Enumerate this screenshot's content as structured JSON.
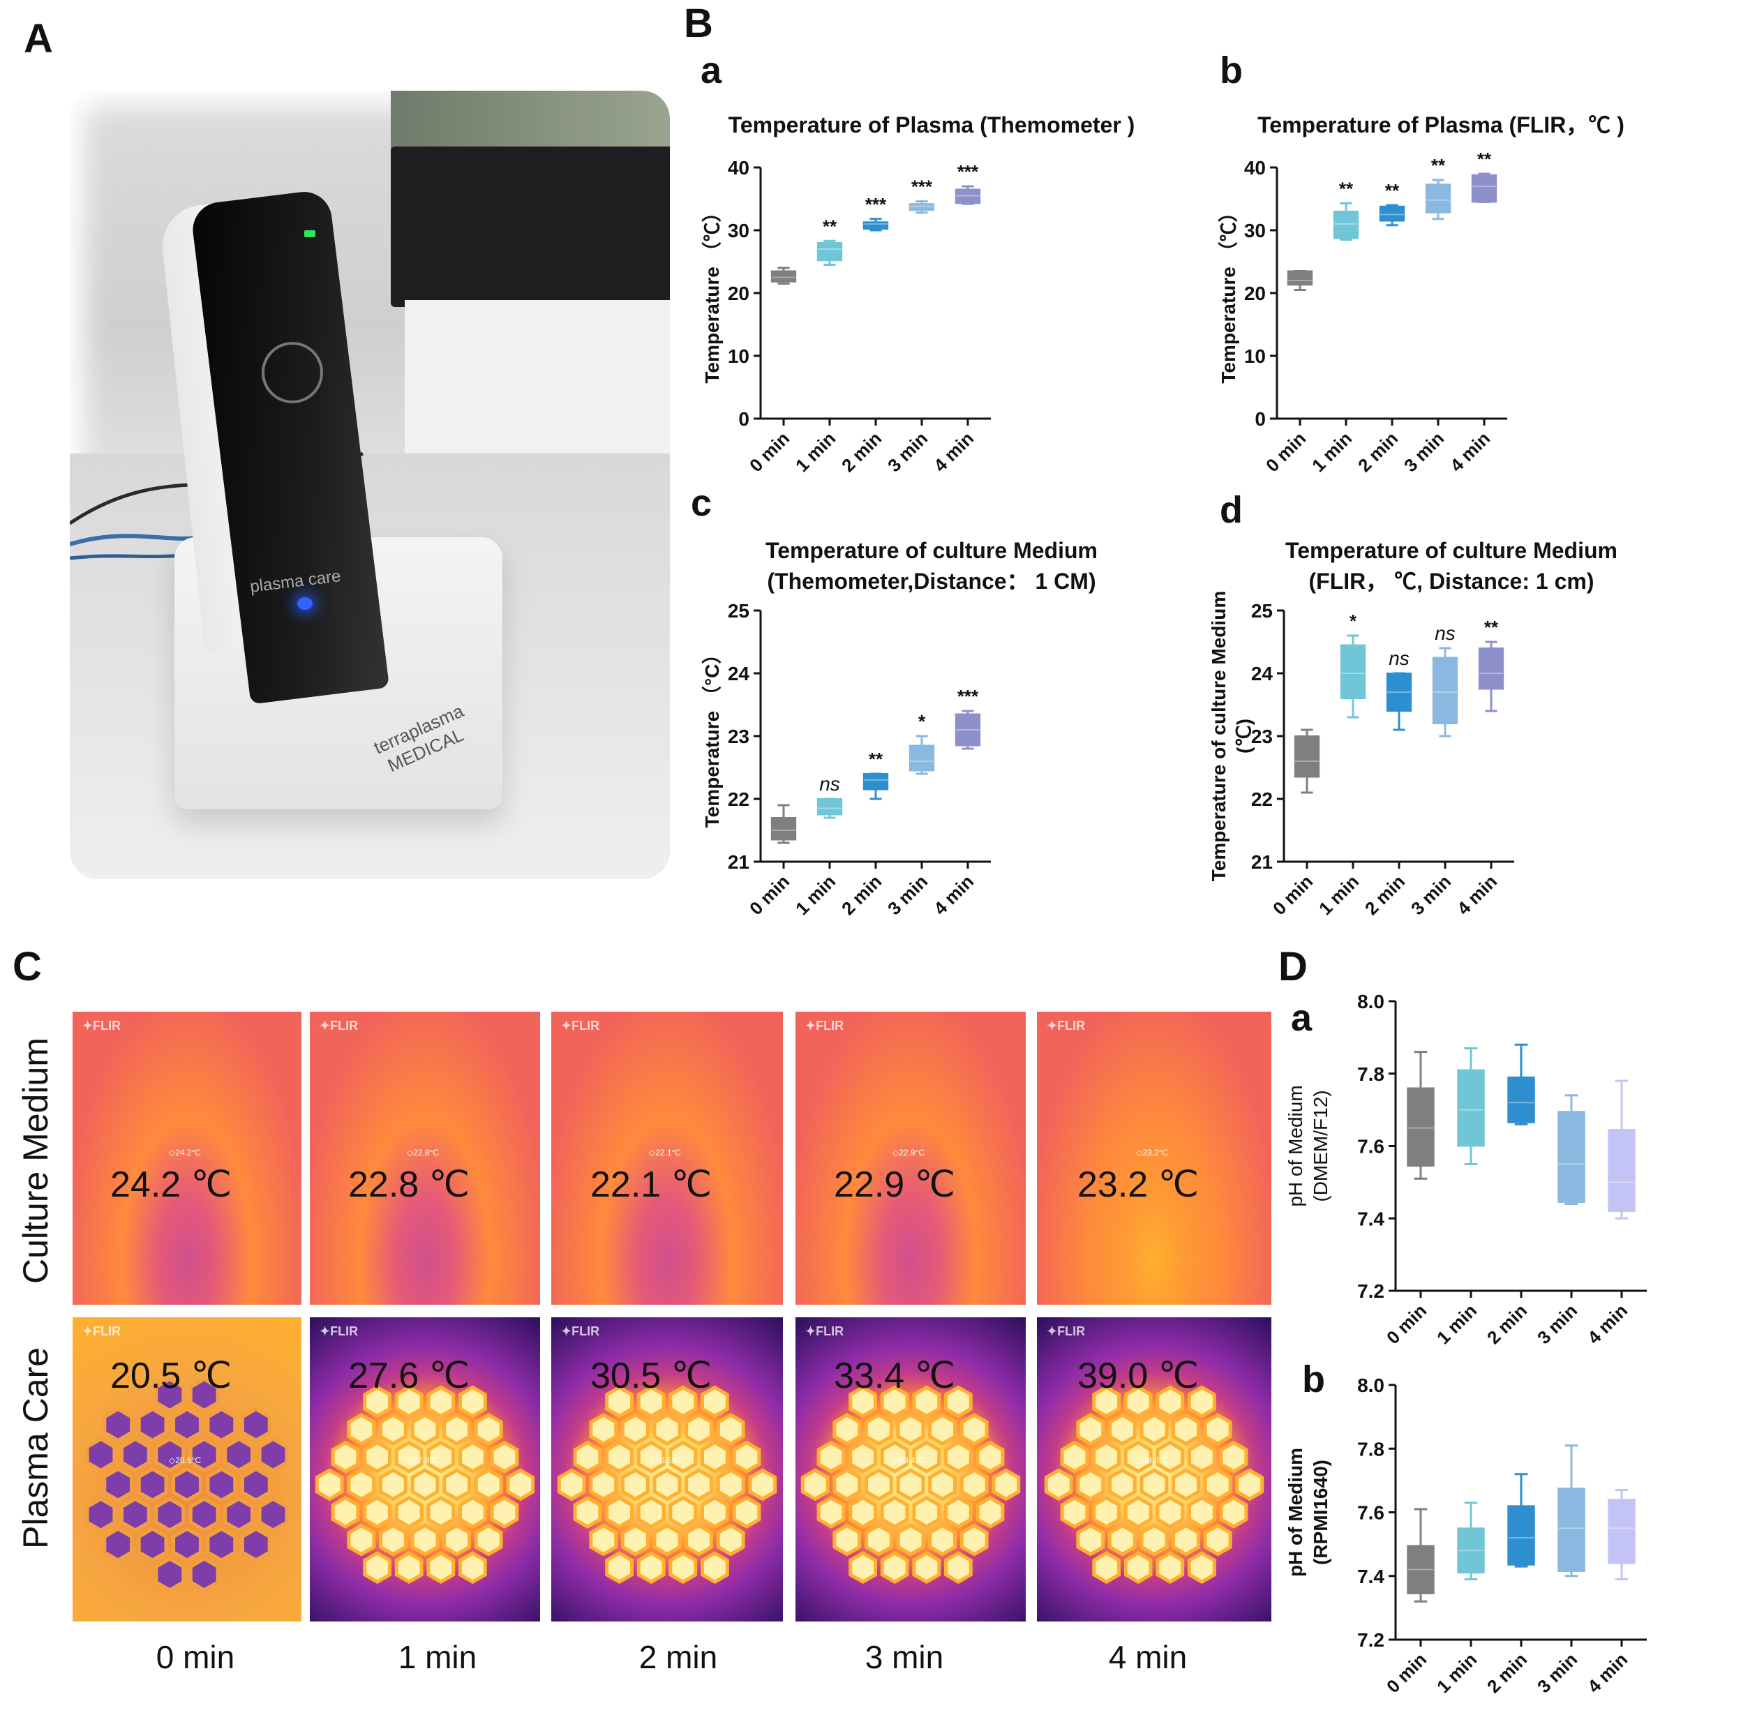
{
  "panels": {
    "A": "A",
    "B": "B",
    "C": "C",
    "D": "D",
    "Ba": "a",
    "Bb": "b",
    "Bc": "c",
    "Bd": "d",
    "Da": "a",
    "Db": "b"
  },
  "photo": {
    "device_brand": "plasma care",
    "stand_brand_line1": "terraplasma",
    "stand_brand_line2": "MEDICAL"
  },
  "thermal": {
    "row_labels": [
      "Culture Medium",
      "Plasma Care"
    ],
    "time_labels": [
      "0 min",
      "1 min",
      "2 min",
      "3 min",
      "4 min"
    ],
    "flir_label": "FLIR",
    "culture_medium": [
      "24.2 ℃",
      "22.8 ℃",
      "22.1 ℃",
      "22.9 ℃",
      "23.2 ℃"
    ],
    "culture_spots": [
      "24.2°C",
      "22.8°C",
      "22.1°C",
      "22.9°C",
      "23.2°C"
    ],
    "plasma_care": [
      "20.5 ℃",
      "27.6 ℃",
      "30.5 ℃",
      "33.4 ℃",
      "39.0 ℃"
    ],
    "plasma_spots": [
      "20.5°C",
      "27.6°C",
      "30.5°C",
      "33.4°C",
      "39.0°C"
    ],
    "colors": {
      "culture_bg": "#f2645a",
      "culture_bg2": "#ff8a3c",
      "warm": "#ffb02e",
      "hot": "#fff3a0",
      "cold": "#2a0f5c",
      "mid": "#8e2ca8"
    }
  },
  "chart_data": [
    {
      "id": "Ba",
      "type": "box",
      "title": [
        "Temperature of Plasma (Themometer )"
      ],
      "ylabel": "Temperature （℃）",
      "categories": [
        "0 min",
        "1 min",
        "2 min",
        "3 min",
        "4 min"
      ],
      "ylim": [
        0,
        40
      ],
      "yticks": [
        0,
        10,
        20,
        30,
        40
      ],
      "boxes": [
        {
          "min": 21.5,
          "q1": 21.8,
          "median": 22.5,
          "q3": 23.5,
          "max": 24.0
        },
        {
          "min": 24.5,
          "q1": 25.2,
          "median": 27.0,
          "q3": 28.0,
          "max": 28.3
        },
        {
          "min": 30.0,
          "q1": 30.2,
          "median": 31.0,
          "q3": 31.3,
          "max": 31.8
        },
        {
          "min": 32.8,
          "q1": 33.2,
          "median": 33.8,
          "q3": 34.2,
          "max": 34.6
        },
        {
          "min": 34.2,
          "q1": 34.3,
          "median": 35.5,
          "q3": 36.5,
          "max": 37.0
        }
      ],
      "significance": [
        "",
        "**",
        "***",
        "***",
        "***"
      ],
      "colors": [
        "#7f7f7f",
        "#70c6d6",
        "#2e8fd0",
        "#8ab8e0",
        "#8e90cc"
      ]
    },
    {
      "id": "Bb",
      "type": "box",
      "title": [
        "Temperature of Plasma (FLIR，℃ )"
      ],
      "ylabel": "Temperature （℃）",
      "categories": [
        "0 min",
        "1 min",
        "2 min",
        "3 min",
        "4 min"
      ],
      "ylim": [
        0,
        40
      ],
      "yticks": [
        0,
        10,
        20,
        30,
        40
      ],
      "boxes": [
        {
          "min": 20.5,
          "q1": 21.3,
          "median": 22.0,
          "q3": 23.5,
          "max": 23.5
        },
        {
          "min": 28.5,
          "q1": 28.7,
          "median": 31.0,
          "q3": 33.0,
          "max": 34.3
        },
        {
          "min": 30.8,
          "q1": 31.5,
          "median": 32.5,
          "q3": 33.8,
          "max": 34.0
        },
        {
          "min": 31.8,
          "q1": 32.8,
          "median": 34.8,
          "q3": 37.3,
          "max": 38.0
        },
        {
          "min": 34.5,
          "q1": 34.5,
          "median": 37.0,
          "q3": 38.8,
          "max": 39.0
        }
      ],
      "significance": [
        "",
        "**",
        "**",
        "**",
        "**"
      ],
      "colors": [
        "#7f7f7f",
        "#70c6d6",
        "#2e8fd0",
        "#8ab8e0",
        "#8e90cc"
      ]
    },
    {
      "id": "Bc",
      "type": "box",
      "title": [
        "Temperature of culture Medium",
        "(Themometer,Distance： 1 CM)"
      ],
      "ylabel": "Temperature （°C）",
      "categories": [
        "0 min",
        "1 min",
        "2 min",
        "3 min",
        "4 min"
      ],
      "ylim": [
        21,
        25
      ],
      "yticks": [
        21,
        22,
        23,
        24,
        25
      ],
      "boxes": [
        {
          "min": 21.3,
          "q1": 21.35,
          "median": 21.5,
          "q3": 21.7,
          "max": 21.9
        },
        {
          "min": 21.7,
          "q1": 21.75,
          "median": 21.85,
          "q3": 22.0,
          "max": 22.0
        },
        {
          "min": 22.0,
          "q1": 22.15,
          "median": 22.3,
          "q3": 22.4,
          "max": 22.4
        },
        {
          "min": 22.4,
          "q1": 22.45,
          "median": 22.6,
          "q3": 22.85,
          "max": 23.0
        },
        {
          "min": 22.8,
          "q1": 22.85,
          "median": 23.1,
          "q3": 23.35,
          "max": 23.4
        }
      ],
      "significance": [
        "",
        "ns",
        "**",
        "*",
        "***"
      ],
      "colors": [
        "#7f7f7f",
        "#70c6d6",
        "#2e8fd0",
        "#8ab8e0",
        "#8e90cc"
      ]
    },
    {
      "id": "Bd",
      "type": "box",
      "title": [
        "Temperature of culture Medium",
        "(FLIR， ℃, Distance: 1 cm)"
      ],
      "ylabel": [
        "Temperature of culture Medium",
        "(℃)"
      ],
      "categories": [
        "0 min",
        "1 min",
        "2 min",
        "3 min",
        "4 min"
      ],
      "ylim": [
        21,
        25
      ],
      "yticks": [
        21,
        22,
        23,
        24,
        25
      ],
      "boxes": [
        {
          "min": 22.1,
          "q1": 22.35,
          "median": 22.6,
          "q3": 23.0,
          "max": 23.1
        },
        {
          "min": 23.3,
          "q1": 23.6,
          "median": 24.0,
          "q3": 24.45,
          "max": 24.6
        },
        {
          "min": 23.1,
          "q1": 23.4,
          "median": 23.7,
          "q3": 24.0,
          "max": 24.0
        },
        {
          "min": 23.0,
          "q1": 23.2,
          "median": 23.7,
          "q3": 24.25,
          "max": 24.4
        },
        {
          "min": 23.4,
          "q1": 23.75,
          "median": 24.0,
          "q3": 24.4,
          "max": 24.5
        }
      ],
      "significance": [
        "",
        "*",
        "ns",
        "ns",
        "**"
      ],
      "colors": [
        "#7f7f7f",
        "#70c6d6",
        "#2e8fd0",
        "#8ab8e0",
        "#8e90cc"
      ]
    },
    {
      "id": "Da",
      "type": "box",
      "title": [],
      "ylabel": [
        "pH of Medium",
        "(DMEM/F12)"
      ],
      "categories": [
        "0 min",
        "1 min",
        "2 min",
        "3 min",
        "4 min"
      ],
      "ylim": [
        7.2,
        8.0
      ],
      "yticks": [
        "7.2",
        "7.4",
        "7.6",
        "7.8",
        "8.0"
      ],
      "boxes": [
        {
          "min": 7.51,
          "q1": 7.545,
          "median": 7.65,
          "q3": 7.76,
          "max": 7.86
        },
        {
          "min": 7.55,
          "q1": 7.6,
          "median": 7.7,
          "q3": 7.81,
          "max": 7.87
        },
        {
          "min": 7.66,
          "q1": 7.665,
          "median": 7.72,
          "q3": 7.79,
          "max": 7.88
        },
        {
          "min": 7.44,
          "q1": 7.445,
          "median": 7.55,
          "q3": 7.695,
          "max": 7.74
        },
        {
          "min": 7.4,
          "q1": 7.42,
          "median": 7.5,
          "q3": 7.645,
          "max": 7.78
        }
      ],
      "significance": [
        "",
        "",
        "",
        "",
        ""
      ],
      "colors": [
        "#7f7f7f",
        "#70c6d6",
        "#2e8fd0",
        "#8ab8e0",
        "#c3c4f5"
      ]
    },
    {
      "id": "Db",
      "type": "box",
      "title": [],
      "ylabel": [
        "pH of Medium",
        "(RPMI1640)"
      ],
      "categories": [
        "0 min",
        "1 min",
        "2 min",
        "3 min",
        "4 min"
      ],
      "ylim": [
        7.2,
        8.0
      ],
      "yticks": [
        "7.2",
        "7.4",
        "7.6",
        "7.8",
        "8.0"
      ],
      "boxes": [
        {
          "min": 7.32,
          "q1": 7.345,
          "median": 7.42,
          "q3": 7.495,
          "max": 7.61
        },
        {
          "min": 7.39,
          "q1": 7.41,
          "median": 7.48,
          "q3": 7.55,
          "max": 7.63
        },
        {
          "min": 7.43,
          "q1": 7.435,
          "median": 7.52,
          "q3": 7.62,
          "max": 7.72
        },
        {
          "min": 7.4,
          "q1": 7.415,
          "median": 7.55,
          "q3": 7.675,
          "max": 7.81
        },
        {
          "min": 7.39,
          "q1": 7.44,
          "median": 7.55,
          "q3": 7.64,
          "max": 7.67
        }
      ],
      "significance": [
        "",
        "",
        "",
        "",
        ""
      ],
      "colors": [
        "#7f7f7f",
        "#70c6d6",
        "#2e8fd0",
        "#8ab8e0",
        "#c3c4f5"
      ]
    }
  ]
}
